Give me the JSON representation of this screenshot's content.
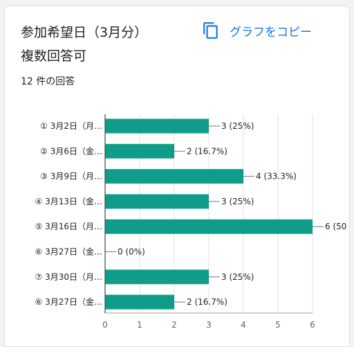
{
  "question": {
    "title": "参加希望日（3月分）\n複数回答可",
    "response_count": "12 件の回答"
  },
  "copy_button": {
    "label": "グラフをコピー",
    "icon": "copy-icon"
  },
  "colors": {
    "bar": "#0f9d8a",
    "accent": "#1a73e8"
  },
  "chart_data": {
    "type": "bar",
    "orientation": "horizontal",
    "categories": [
      "① 3月2日（月…",
      "② 3月6日（金…",
      "③ 3月9日（月…",
      "④ 3月13日（金…",
      "⑤ 3月16日（月…",
      "⑥ 3月27日（金…",
      "⑦ 3月30日（月…",
      "⑥ 3月27日（金…"
    ],
    "values": [
      3,
      2,
      4,
      3,
      6,
      0,
      3,
      2
    ],
    "value_labels": [
      "3 (25%)",
      "2 (16.7%)",
      "4 (33.3%)",
      "3 (25%)",
      "6 (50",
      "0 (0%)",
      "3 (25%)",
      "2 (16.7%)"
    ],
    "xlim": [
      0,
      6
    ],
    "xticks": [
      "0",
      "1",
      "2",
      "3",
      "4",
      "5",
      "6"
    ],
    "grid": true
  }
}
